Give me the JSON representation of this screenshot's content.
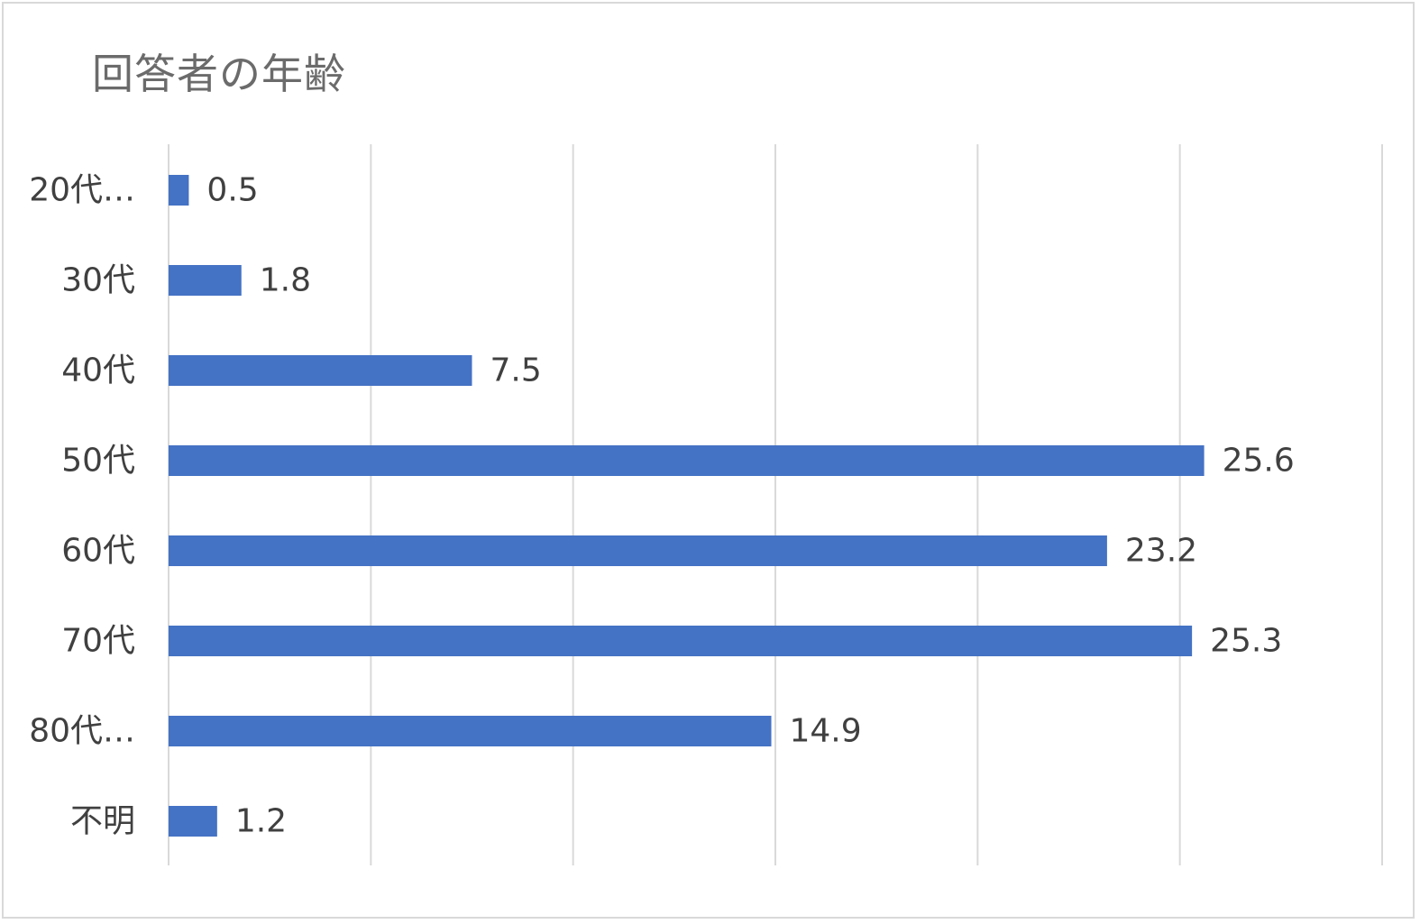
{
  "chart_data": {
    "type": "bar",
    "orientation": "horizontal",
    "title": "回答者の年齢",
    "categories": [
      "20代…",
      "30代",
      "40代",
      "50代",
      "60代",
      "70代",
      "80代…",
      "不明"
    ],
    "series": [
      {
        "values": [
          0.5,
          1.8,
          7.5,
          25.6,
          23.2,
          25.3,
          14.9,
          1.2
        ]
      }
    ],
    "data_labels": [
      "0.5",
      "1.8",
      "7.5",
      "25.6",
      "23.2",
      "25.3",
      "14.9",
      "1.2"
    ],
    "xlim": [
      0,
      30
    ],
    "x_gridlines": [
      0,
      5,
      10,
      15,
      20,
      25,
      30
    ],
    "grid": "vertical",
    "legend": "none",
    "bar_color": "#4472c4",
    "grid_color": "#d9d9d9"
  }
}
